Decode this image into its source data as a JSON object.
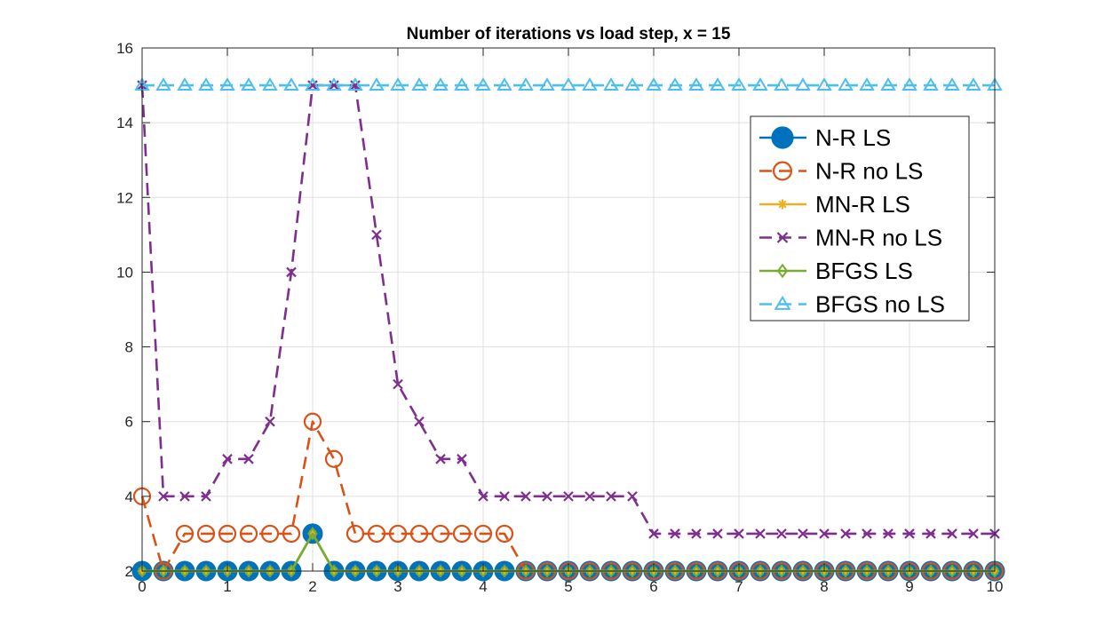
{
  "chart_data": {
    "type": "line",
    "title": "Number of iterations vs load step, x = 15",
    "xlabel": "",
    "ylabel": "",
    "xlim": [
      0,
      10
    ],
    "ylim": [
      2,
      16
    ],
    "xticks": [
      0,
      1,
      2,
      3,
      4,
      5,
      6,
      7,
      8,
      9,
      10
    ],
    "yticks": [
      2,
      4,
      6,
      8,
      10,
      12,
      14,
      16
    ],
    "xtick_labels": [
      "0",
      "1",
      "2",
      "3",
      "4",
      "5",
      "6",
      "7",
      "8",
      "9",
      "10"
    ],
    "ytick_labels": [
      "2",
      "4",
      "6",
      "8",
      "10",
      "12",
      "14",
      "16"
    ],
    "grid": true,
    "legend_position": "top-right",
    "x": [
      0,
      0.25,
      0.5,
      0.75,
      1,
      1.25,
      1.5,
      1.75,
      2,
      2.25,
      2.5,
      2.75,
      3,
      3.25,
      3.5,
      3.75,
      4,
      4.25,
      4.5,
      4.75,
      5,
      5.25,
      5.5,
      5.75,
      6,
      6.25,
      6.5,
      6.75,
      7,
      7.25,
      7.5,
      7.75,
      8,
      8.25,
      8.5,
      8.75,
      9,
      9.25,
      9.5,
      9.75,
      10
    ],
    "series": [
      {
        "name": "N-R LS",
        "color": "#0072BD",
        "marker": "filled-circle",
        "line_style": "solid",
        "values": [
          2,
          2,
          2,
          2,
          2,
          2,
          2,
          2,
          3,
          2,
          2,
          2,
          2,
          2,
          2,
          2,
          2,
          2,
          2,
          2,
          2,
          2,
          2,
          2,
          2,
          2,
          2,
          2,
          2,
          2,
          2,
          2,
          2,
          2,
          2,
          2,
          2,
          2,
          2,
          2,
          2
        ]
      },
      {
        "name": "N-R no LS",
        "color": "#D95319",
        "marker": "open-circle",
        "line_style": "dashed",
        "values": [
          4,
          2,
          3,
          3,
          3,
          3,
          3,
          3,
          6,
          5,
          3,
          3,
          3,
          3,
          3,
          3,
          3,
          3,
          2,
          2,
          2,
          2,
          2,
          2,
          2,
          2,
          2,
          2,
          2,
          2,
          2,
          2,
          2,
          2,
          2,
          2,
          2,
          2,
          2,
          2,
          2
        ]
      },
      {
        "name": "MN-R LS",
        "color": "#EDB120",
        "marker": "asterisk",
        "line_style": "solid",
        "values": [
          2,
          2,
          2,
          2,
          2,
          2,
          2,
          2,
          3,
          2,
          2,
          2,
          2,
          2,
          2,
          2,
          2,
          2,
          2,
          2,
          2,
          2,
          2,
          2,
          2,
          2,
          2,
          2,
          2,
          2,
          2,
          2,
          2,
          2,
          2,
          2,
          2,
          2,
          2,
          2,
          2
        ]
      },
      {
        "name": "MN-R no LS",
        "color": "#7E2F8E",
        "marker": "x",
        "line_style": "dashed",
        "values": [
          15,
          4,
          4,
          4,
          5,
          5,
          6,
          10,
          15,
          15,
          15,
          11,
          7,
          6,
          5,
          5,
          4,
          4,
          4,
          4,
          4,
          4,
          4,
          4,
          3,
          3,
          3,
          3,
          3,
          3,
          3,
          3,
          3,
          3,
          3,
          3,
          3,
          3,
          3,
          3,
          3
        ]
      },
      {
        "name": "BFGS LS",
        "color": "#77AC30",
        "marker": "diamond",
        "line_style": "solid",
        "values": [
          2,
          2,
          2,
          2,
          2,
          2,
          2,
          2,
          3,
          2,
          2,
          2,
          2,
          2,
          2,
          2,
          2,
          2,
          2,
          2,
          2,
          2,
          2,
          2,
          2,
          2,
          2,
          2,
          2,
          2,
          2,
          2,
          2,
          2,
          2,
          2,
          2,
          2,
          2,
          2,
          2
        ]
      },
      {
        "name": "BFGS no LS",
        "color": "#4DBEEE",
        "marker": "triangle",
        "line_style": "dashed",
        "values": [
          15,
          15,
          15,
          15,
          15,
          15,
          15,
          15,
          15,
          15,
          15,
          15,
          15,
          15,
          15,
          15,
          15,
          15,
          15,
          15,
          15,
          15,
          15,
          15,
          15,
          15,
          15,
          15,
          15,
          15,
          15,
          15,
          15,
          15,
          15,
          15,
          15,
          15,
          15,
          15,
          15
        ]
      }
    ]
  }
}
